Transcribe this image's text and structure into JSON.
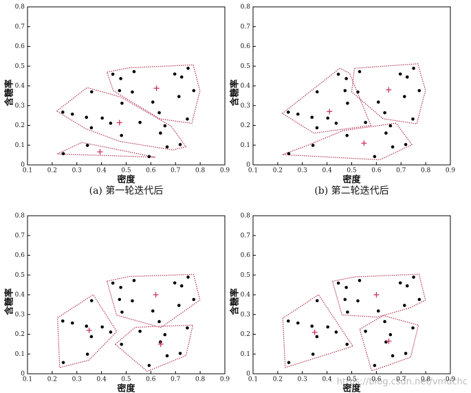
{
  "chart_data": [
    {
      "type": "scatter",
      "xlabel": "密度",
      "ylabel": "含糖率",
      "caption": "(a) 第一轮迭代后",
      "xlim": [
        0.1,
        0.9
      ],
      "ylim": [
        0,
        0.8
      ],
      "xticks": [
        0.1,
        0.2,
        0.3,
        0.4,
        0.5,
        0.6,
        0.7,
        0.8,
        0.9
      ],
      "yticks": [
        0,
        0.1,
        0.2,
        0.3,
        0.4,
        0.5,
        0.6,
        0.7,
        0.8
      ],
      "series": [
        {
          "color": "#000000",
          "x": [
            0.556,
            0.403,
            0.481,
            0.437,
            0.666,
            0.243,
            0.639,
            0.657,
            0.36,
            0.719,
            0.359,
            0.339,
            0.282,
            0.483
          ],
          "y": [
            0.215,
            0.237,
            0.149,
            0.211,
            0.091,
            0.267,
            0.161,
            0.198,
            0.37,
            0.103,
            0.188,
            0.241,
            0.257,
            0.312
          ]
        },
        {
          "color": "#000000",
          "x": [
            0.245,
            0.343,
            0.593
          ],
          "y": [
            0.057,
            0.099,
            0.042
          ]
        },
        {
          "color": "#000000",
          "x": [
            0.697,
            0.774,
            0.634,
            0.608,
            0.748,
            0.714,
            0.478,
            0.525,
            0.751,
            0.532,
            0.473,
            0.725,
            0.446
          ],
          "y": [
            0.46,
            0.376,
            0.264,
            0.318,
            0.232,
            0.346,
            0.437,
            0.369,
            0.489,
            0.472,
            0.376,
            0.445,
            0.459
          ]
        }
      ],
      "centroids": {
        "color": "#c8325a",
        "x": [
          0.473,
          0.394,
          0.623
        ],
        "y": [
          0.214,
          0.066,
          0.388
        ]
      },
      "hull_color": "#b03050"
    },
    {
      "type": "scatter",
      "xlabel": "密度",
      "ylabel": "含糖率",
      "caption": "(b) 第二轮迭代后",
      "xlim": [
        0.1,
        0.9
      ],
      "ylim": [
        0,
        0.8
      ],
      "xticks": [
        0.1,
        0.2,
        0.3,
        0.4,
        0.5,
        0.6,
        0.7,
        0.8,
        0.9
      ],
      "yticks": [
        0,
        0.1,
        0.2,
        0.3,
        0.4,
        0.5,
        0.6,
        0.7,
        0.8
      ],
      "series": [
        {
          "color": "#000000",
          "x": [
            0.403,
            0.437,
            0.243,
            0.36,
            0.359,
            0.339,
            0.282,
            0.483,
            0.478,
            0.473,
            0.446,
            0.556
          ],
          "y": [
            0.237,
            0.211,
            0.267,
            0.37,
            0.188,
            0.241,
            0.257,
            0.312,
            0.437,
            0.376,
            0.459,
            0.215
          ]
        },
        {
          "color": "#000000",
          "x": [
            0.245,
            0.343,
            0.593,
            0.666,
            0.719,
            0.639,
            0.657,
            0.481
          ],
          "y": [
            0.057,
            0.099,
            0.042,
            0.091,
            0.103,
            0.161,
            0.198,
            0.149
          ]
        },
        {
          "color": "#000000",
          "x": [
            0.697,
            0.774,
            0.634,
            0.608,
            0.748,
            0.714,
            0.525,
            0.751,
            0.532,
            0.725
          ],
          "y": [
            0.46,
            0.376,
            0.264,
            0.318,
            0.232,
            0.346,
            0.369,
            0.489,
            0.472,
            0.445
          ]
        }
      ],
      "centroids": {
        "color": "#c8325a",
        "x": [
          0.41,
          0.55,
          0.65
        ],
        "y": [
          0.27,
          0.11,
          0.38
        ]
      },
      "hull_color": "#b03050"
    },
    {
      "type": "scatter",
      "xlabel": "密度",
      "ylabel": "含糖率",
      "xlim": [
        0.1,
        0.9
      ],
      "ylim": [
        0,
        0.8
      ],
      "xticks": [
        0.1,
        0.2,
        0.3,
        0.4,
        0.5,
        0.6,
        0.7,
        0.8,
        0.9
      ],
      "yticks": [
        0,
        0.1,
        0.2,
        0.3,
        0.4,
        0.5,
        0.6,
        0.7,
        0.8
      ],
      "series": [
        {
          "color": "#000000",
          "x": [
            0.403,
            0.437,
            0.243,
            0.245,
            0.343,
            0.36,
            0.359,
            0.339,
            0.282
          ],
          "y": [
            0.237,
            0.211,
            0.267,
            0.057,
            0.099,
            0.37,
            0.188,
            0.241,
            0.257
          ]
        },
        {
          "color": "#000000",
          "x": [
            0.697,
            0.774,
            0.634,
            0.608,
            0.714,
            0.483,
            0.478,
            0.525,
            0.751,
            0.532,
            0.473,
            0.725,
            0.446
          ],
          "y": [
            0.46,
            0.376,
            0.264,
            0.318,
            0.346,
            0.312,
            0.437,
            0.369,
            0.489,
            0.472,
            0.376,
            0.445,
            0.459
          ]
        },
        {
          "color": "#000000",
          "x": [
            0.556,
            0.481,
            0.666,
            0.639,
            0.657,
            0.593,
            0.719,
            0.748
          ],
          "y": [
            0.215,
            0.149,
            0.091,
            0.161,
            0.198,
            0.042,
            0.103,
            0.232
          ]
        }
      ],
      "centroids": {
        "color": "#c8325a",
        "x": [
          0.35,
          0.62,
          0.64
        ],
        "y": [
          0.22,
          0.4,
          0.15
        ]
      },
      "hull_color": "#b03050"
    },
    {
      "type": "scatter",
      "xlabel": "密度",
      "ylabel": "含糖率",
      "xlim": [
        0.1,
        0.9
      ],
      "ylim": [
        0,
        0.8
      ],
      "xticks": [
        0.1,
        0.2,
        0.3,
        0.4,
        0.5,
        0.6,
        0.7,
        0.8,
        0.9
      ],
      "yticks": [
        0,
        0.1,
        0.2,
        0.3,
        0.4,
        0.5,
        0.6,
        0.7,
        0.8
      ],
      "series": [
        {
          "color": "#000000",
          "x": [
            0.403,
            0.481,
            0.437,
            0.243,
            0.245,
            0.343,
            0.36,
            0.359,
            0.339,
            0.282
          ],
          "y": [
            0.237,
            0.149,
            0.211,
            0.267,
            0.057,
            0.099,
            0.37,
            0.188,
            0.241,
            0.257
          ]
        },
        {
          "color": "#000000",
          "x": [
            0.697,
            0.774,
            0.608,
            0.714,
            0.483,
            0.478,
            0.525,
            0.751,
            0.532,
            0.473,
            0.725,
            0.446
          ],
          "y": [
            0.46,
            0.376,
            0.318,
            0.346,
            0.312,
            0.437,
            0.369,
            0.489,
            0.472,
            0.376,
            0.445,
            0.459
          ]
        },
        {
          "color": "#000000",
          "x": [
            0.634,
            0.556,
            0.666,
            0.639,
            0.657,
            0.593,
            0.719,
            0.748
          ],
          "y": [
            0.264,
            0.215,
            0.091,
            0.161,
            0.198,
            0.042,
            0.103,
            0.232
          ]
        }
      ],
      "centroids": {
        "color": "#c8325a",
        "x": [
          0.35,
          0.6,
          0.65
        ],
        "y": [
          0.21,
          0.4,
          0.165
        ]
      },
      "hull_color": "#b03050"
    }
  ],
  "watermark": "https://blog.csdn.net/vmdchc"
}
